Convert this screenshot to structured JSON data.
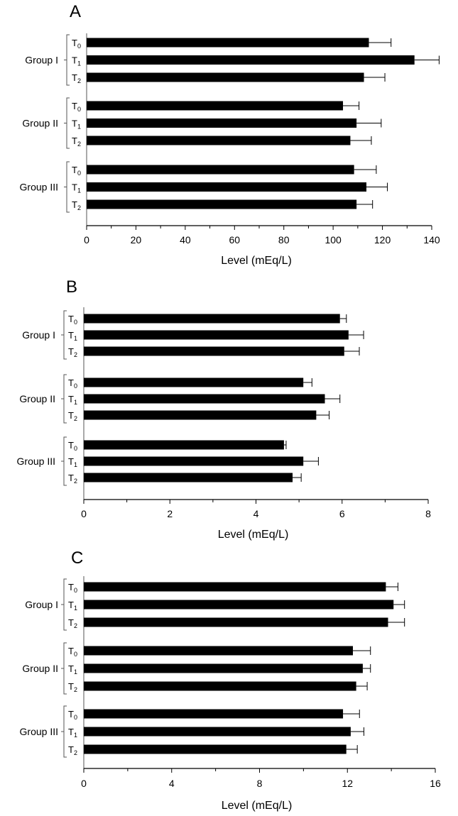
{
  "chart_data": [
    {
      "type": "bar",
      "orientation": "horizontal",
      "panel": "A",
      "xlabel": "Level (mEq/L)",
      "xlim": [
        0,
        140
      ],
      "xticks": [
        0,
        20,
        40,
        60,
        80,
        100,
        120,
        140
      ],
      "groups": [
        {
          "label": "Group I",
          "bars": [
            {
              "label": "T",
              "sub": "0",
              "value": 114.5,
              "error": 9
            },
            {
              "label": "T",
              "sub": "1",
              "value": 133,
              "error": 10
            },
            {
              "label": "T",
              "sub": "2",
              "value": 112.5,
              "error": 8.5
            }
          ]
        },
        {
          "label": "Group II",
          "bars": [
            {
              "label": "T",
              "sub": "0",
              "value": 104,
              "error": 6.5
            },
            {
              "label": "T",
              "sub": "1",
              "value": 109.5,
              "error": 10
            },
            {
              "label": "T",
              "sub": "2",
              "value": 107,
              "error": 8.5
            }
          ]
        },
        {
          "label": "Group III",
          "bars": [
            {
              "label": "T",
              "sub": "0",
              "value": 108.5,
              "error": 9
            },
            {
              "label": "T",
              "sub": "1",
              "value": 113.5,
              "error": 8.5
            },
            {
              "label": "T",
              "sub": "2",
              "value": 109.5,
              "error": 6.5
            }
          ]
        }
      ]
    },
    {
      "type": "bar",
      "orientation": "horizontal",
      "panel": "B",
      "xlabel": "Level (mEq/L)",
      "xlim": [
        0,
        8
      ],
      "xticks": [
        0,
        2,
        4,
        6,
        8
      ],
      "groups": [
        {
          "label": "Group I",
          "bars": [
            {
              "label": "T",
              "sub": "0",
              "value": 5.95,
              "error": 0.15
            },
            {
              "label": "T",
              "sub": "1",
              "value": 6.15,
              "error": 0.35
            },
            {
              "label": "T",
              "sub": "2",
              "value": 6.05,
              "error": 0.35
            }
          ]
        },
        {
          "label": "Group II",
          "bars": [
            {
              "label": "T",
              "sub": "0",
              "value": 5.1,
              "error": 0.2
            },
            {
              "label": "T",
              "sub": "1",
              "value": 5.6,
              "error": 0.35
            },
            {
              "label": "T",
              "sub": "2",
              "value": 5.4,
              "error": 0.3
            }
          ]
        },
        {
          "label": "Group III",
          "bars": [
            {
              "label": "T",
              "sub": "0",
              "value": 4.65,
              "error": 0.05
            },
            {
              "label": "T",
              "sub": "1",
              "value": 5.1,
              "error": 0.35
            },
            {
              "label": "T",
              "sub": "2",
              "value": 4.85,
              "error": 0.2
            }
          ]
        }
      ]
    },
    {
      "type": "bar",
      "orientation": "horizontal",
      "panel": "C",
      "xlabel": "Level (mEq/L)",
      "xlim": [
        0,
        16
      ],
      "xticks": [
        0,
        4,
        8,
        12,
        16
      ],
      "groups": [
        {
          "label": "Group I",
          "bars": [
            {
              "label": "T",
              "sub": "0",
              "value": 13.75,
              "error": 0.55
            },
            {
              "label": "T",
              "sub": "1",
              "value": 14.1,
              "error": 0.5
            },
            {
              "label": "T",
              "sub": "2",
              "value": 13.85,
              "error": 0.75
            }
          ]
        },
        {
          "label": "Group II",
          "bars": [
            {
              "label": "T",
              "sub": "0",
              "value": 12.25,
              "error": 0.8
            },
            {
              "label": "T",
              "sub": "1",
              "value": 12.7,
              "error": 0.35
            },
            {
              "label": "T",
              "sub": "2",
              "value": 12.4,
              "error": 0.5
            }
          ]
        },
        {
          "label": "Group III",
          "bars": [
            {
              "label": "T",
              "sub": "0",
              "value": 11.8,
              "error": 0.75
            },
            {
              "label": "T",
              "sub": "1",
              "value": 12.15,
              "error": 0.6
            },
            {
              "label": "T",
              "sub": "2",
              "value": 11.95,
              "error": 0.5
            }
          ]
        }
      ]
    }
  ]
}
